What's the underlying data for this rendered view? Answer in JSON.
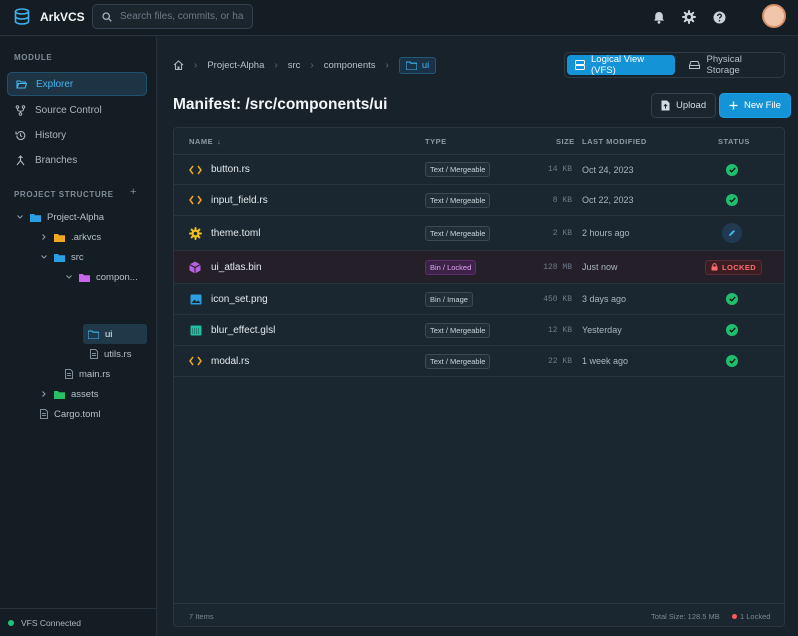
{
  "app": {
    "title": "ArkVCS"
  },
  "search": {
    "placeholder": "Search files, commits, or hashes..."
  },
  "sidebar": {
    "module_label": "MODULE",
    "nav": [
      {
        "label": "Explorer",
        "icon": "folder-open-icon"
      },
      {
        "label": "Source Control",
        "icon": "git-fork-icon"
      },
      {
        "label": "History",
        "icon": "history-icon"
      },
      {
        "label": "Branches",
        "icon": "branch-icon"
      }
    ],
    "structure_label": "PROJECT STRUCTURE",
    "add_label": "+",
    "tree": [
      {
        "label": "Project-Alpha",
        "type": "folder"
      },
      {
        "label": ".arkvcs",
        "type": "folder"
      },
      {
        "label": "src",
        "type": "folder"
      },
      {
        "label": "compon...",
        "type": "folder"
      },
      {
        "label": "ui",
        "type": "folder"
      },
      {
        "label": "utils.rs",
        "type": "file"
      },
      {
        "label": "main.rs",
        "type": "file"
      },
      {
        "label": "assets",
        "type": "folder"
      },
      {
        "label": "Cargo.toml",
        "type": "file"
      }
    ],
    "status": "VFS Connected"
  },
  "breadcrumb": [
    "Project-Alpha",
    "src",
    "components",
    "ui"
  ],
  "view_toggle": {
    "logical": "Logical View (VFS)",
    "physical": "Physical Storage",
    "active": "logical"
  },
  "page": {
    "title": "Manifest: /src/components/ui"
  },
  "actions": {
    "upload": "Upload",
    "new_file": "New File"
  },
  "table": {
    "headers": {
      "name": "NAME",
      "type": "TYPE",
      "size": "SIZE",
      "modified": "LAST MODIFIED",
      "status": "STATUS"
    },
    "rows": [
      {
        "name": "button.rs",
        "icon": "code-icon",
        "type": "Text / Mergeable",
        "size": "14 KB",
        "modified": "Oct 24, 2023",
        "status": "ok"
      },
      {
        "name": "input_field.rs",
        "icon": "code-icon",
        "type": "Text / Mergeable",
        "size": "8 KB",
        "modified": "Oct 22, 2023",
        "status": "ok"
      },
      {
        "name": "theme.toml",
        "icon": "settings-file-icon",
        "type": "Text / Mergeable",
        "size": "2 KB",
        "modified": "2 hours ago",
        "status": "edit"
      },
      {
        "name": "ui_atlas.bin",
        "icon": "binary-cube-icon",
        "type": "Bin / Locked",
        "size": "128 MB",
        "modified": "Just now",
        "status": "locked",
        "status_label": "LOCKED"
      },
      {
        "name": "icon_set.png",
        "icon": "image-icon",
        "type": "Bin / Image",
        "size": "450 KB",
        "modified": "3 days ago",
        "status": "ok"
      },
      {
        "name": "blur_effect.glsl",
        "icon": "shader-icon",
        "type": "Text / Mergeable",
        "size": "12 KB",
        "modified": "Yesterday",
        "status": "ok"
      },
      {
        "name": "modal.rs",
        "icon": "code-icon",
        "type": "Text / Mergeable",
        "size": "22 KB",
        "modified": "1 week ago",
        "status": "ok"
      }
    ],
    "footer": {
      "count": "7 Items",
      "total": "Total Size: 128.5 MB",
      "locked": "1 Locked"
    }
  },
  "colors": {
    "accent": "#1493d6",
    "ok": "#1fbf6e",
    "locked": "#ff5a5a",
    "bg": "#17222b"
  }
}
